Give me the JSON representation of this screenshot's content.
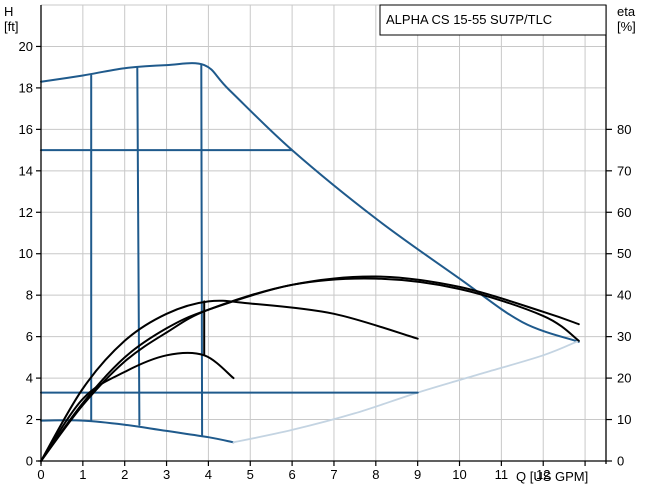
{
  "chart_data": {
    "type": "line",
    "title": "ALPHA CS 15-55 SU7P/TLC",
    "y_label_line1": "H",
    "y_label_line2": "[ft]",
    "y2_label_line1": "eta",
    "y2_label_line2": "[%]",
    "x_label": "Q [US GPM]",
    "xlim": [
      0,
      13.5
    ],
    "ylim": [
      0,
      22
    ],
    "y2lim": [
      0,
      110
    ],
    "x_ticks": [
      0,
      1,
      2,
      3,
      4,
      5,
      6,
      7,
      8,
      9,
      10,
      11,
      12,
      13
    ],
    "x_tick_labels": [
      "0",
      "1",
      "2",
      "3",
      "4",
      "5",
      "6",
      "7",
      "8",
      "9",
      "10",
      "11",
      "12",
      ""
    ],
    "y_ticks": [
      0,
      2,
      4,
      6,
      8,
      10,
      12,
      14,
      16,
      18,
      20
    ],
    "y_tick_labels": [
      "0",
      "2",
      "4",
      "6",
      "8",
      "10",
      "12",
      "14",
      "16",
      "18",
      "20"
    ],
    "y2_ticks": [
      0,
      10,
      20,
      30,
      40,
      50,
      60,
      70,
      80
    ],
    "y2_tick_labels": [
      "0",
      "10",
      "20",
      "30",
      "40",
      "50",
      "60",
      "70",
      "80"
    ],
    "grid": true,
    "colors": {
      "head": "#1f5a8c",
      "efficiency": "#000000",
      "extension": "#c4d4e2",
      "grid": "#c8c8c8"
    },
    "series": [
      {
        "name": "",
        "axis": "H",
        "color": "#1f5a8c",
        "points": [
          [
            0,
            18.3
          ],
          [
            1,
            18.6
          ],
          [
            2,
            18.95
          ],
          [
            3,
            19.1
          ],
          [
            3.9,
            19.1
          ],
          [
            4.5,
            17.9
          ],
          [
            6,
            15.0
          ],
          [
            8,
            11.7
          ],
          [
            10,
            8.8
          ],
          [
            11.5,
            6.7
          ],
          [
            12.85,
            5.75
          ]
        ]
      },
      {
        "name": "",
        "axis": "H",
        "color": "#1f5a8c",
        "points": [
          [
            0,
            1.95
          ],
          [
            1,
            1.95
          ],
          [
            2,
            1.75
          ],
          [
            3,
            1.45
          ],
          [
            4,
            1.15
          ],
          [
            4.6,
            0.9
          ]
        ]
      },
      {
        "name": "",
        "axis": "H",
        "color": "#c4d4e2",
        "points": [
          [
            4.6,
            0.9
          ],
          [
            6,
            1.5
          ],
          [
            7.5,
            2.3
          ],
          [
            9,
            3.3
          ],
          [
            10.5,
            4.2
          ],
          [
            12,
            5.1
          ],
          [
            12.85,
            5.8
          ]
        ]
      },
      {
        "name": "",
        "axis": "H",
        "color": "#1f5a8c",
        "points": [
          [
            0,
            15
          ],
          [
            6,
            15
          ]
        ]
      },
      {
        "name": "",
        "axis": "H",
        "color": "#1f5a8c",
        "points": [
          [
            0,
            3.3
          ],
          [
            9,
            3.3
          ]
        ]
      },
      {
        "name": "",
        "axis": "H",
        "color": "#1f5a8c",
        "points": [
          [
            1.2,
            18.6
          ],
          [
            1.2,
            1.95
          ]
        ]
      },
      {
        "name": "",
        "axis": "H",
        "color": "#1f5a8c",
        "points": [
          [
            2.3,
            18.95
          ],
          [
            2.35,
            1.75
          ]
        ]
      },
      {
        "name": "",
        "axis": "H",
        "color": "#1f5a8c",
        "points": [
          [
            3.83,
            19.1
          ],
          [
            3.85,
            1.2
          ]
        ]
      },
      {
        "name": "",
        "axis": "eta",
        "color": "#000000",
        "points": [
          [
            0,
            0
          ],
          [
            1,
            17.5
          ],
          [
            2,
            29.0
          ],
          [
            3,
            35.5
          ],
          [
            4,
            38.5
          ],
          [
            5,
            38.0
          ],
          [
            7,
            35.5
          ],
          [
            9,
            29.5
          ]
        ]
      },
      {
        "name": "",
        "axis": "eta",
        "color": "#000000",
        "points": [
          [
            0,
            0
          ],
          [
            1,
            15
          ],
          [
            2,
            21.5
          ],
          [
            3,
            25.5
          ],
          [
            3.9,
            25.5
          ],
          [
            4.6,
            20
          ]
        ]
      },
      {
        "name": "",
        "axis": "eta",
        "color": "#000000",
        "points": [
          [
            0,
            0
          ],
          [
            1,
            14
          ],
          [
            2,
            25
          ],
          [
            3,
            32
          ],
          [
            4,
            36.5
          ],
          [
            6,
            42.5
          ],
          [
            8,
            44.5
          ],
          [
            10,
            42
          ],
          [
            12,
            36
          ],
          [
            12.85,
            33
          ]
        ]
      },
      {
        "name": "",
        "axis": "eta",
        "color": "#000000",
        "points": [
          [
            0,
            0
          ],
          [
            1,
            13.5
          ],
          [
            2,
            24
          ],
          [
            3,
            31
          ],
          [
            4,
            36.5
          ],
          [
            6,
            42.5
          ],
          [
            8,
            44
          ],
          [
            10,
            41.5
          ],
          [
            12,
            35
          ],
          [
            12.85,
            29
          ]
        ]
      },
      {
        "name": "",
        "axis": "eta",
        "color": "#000000",
        "points": [
          [
            3.9,
            38.5
          ],
          [
            3.9,
            25.5
          ]
        ]
      }
    ]
  }
}
